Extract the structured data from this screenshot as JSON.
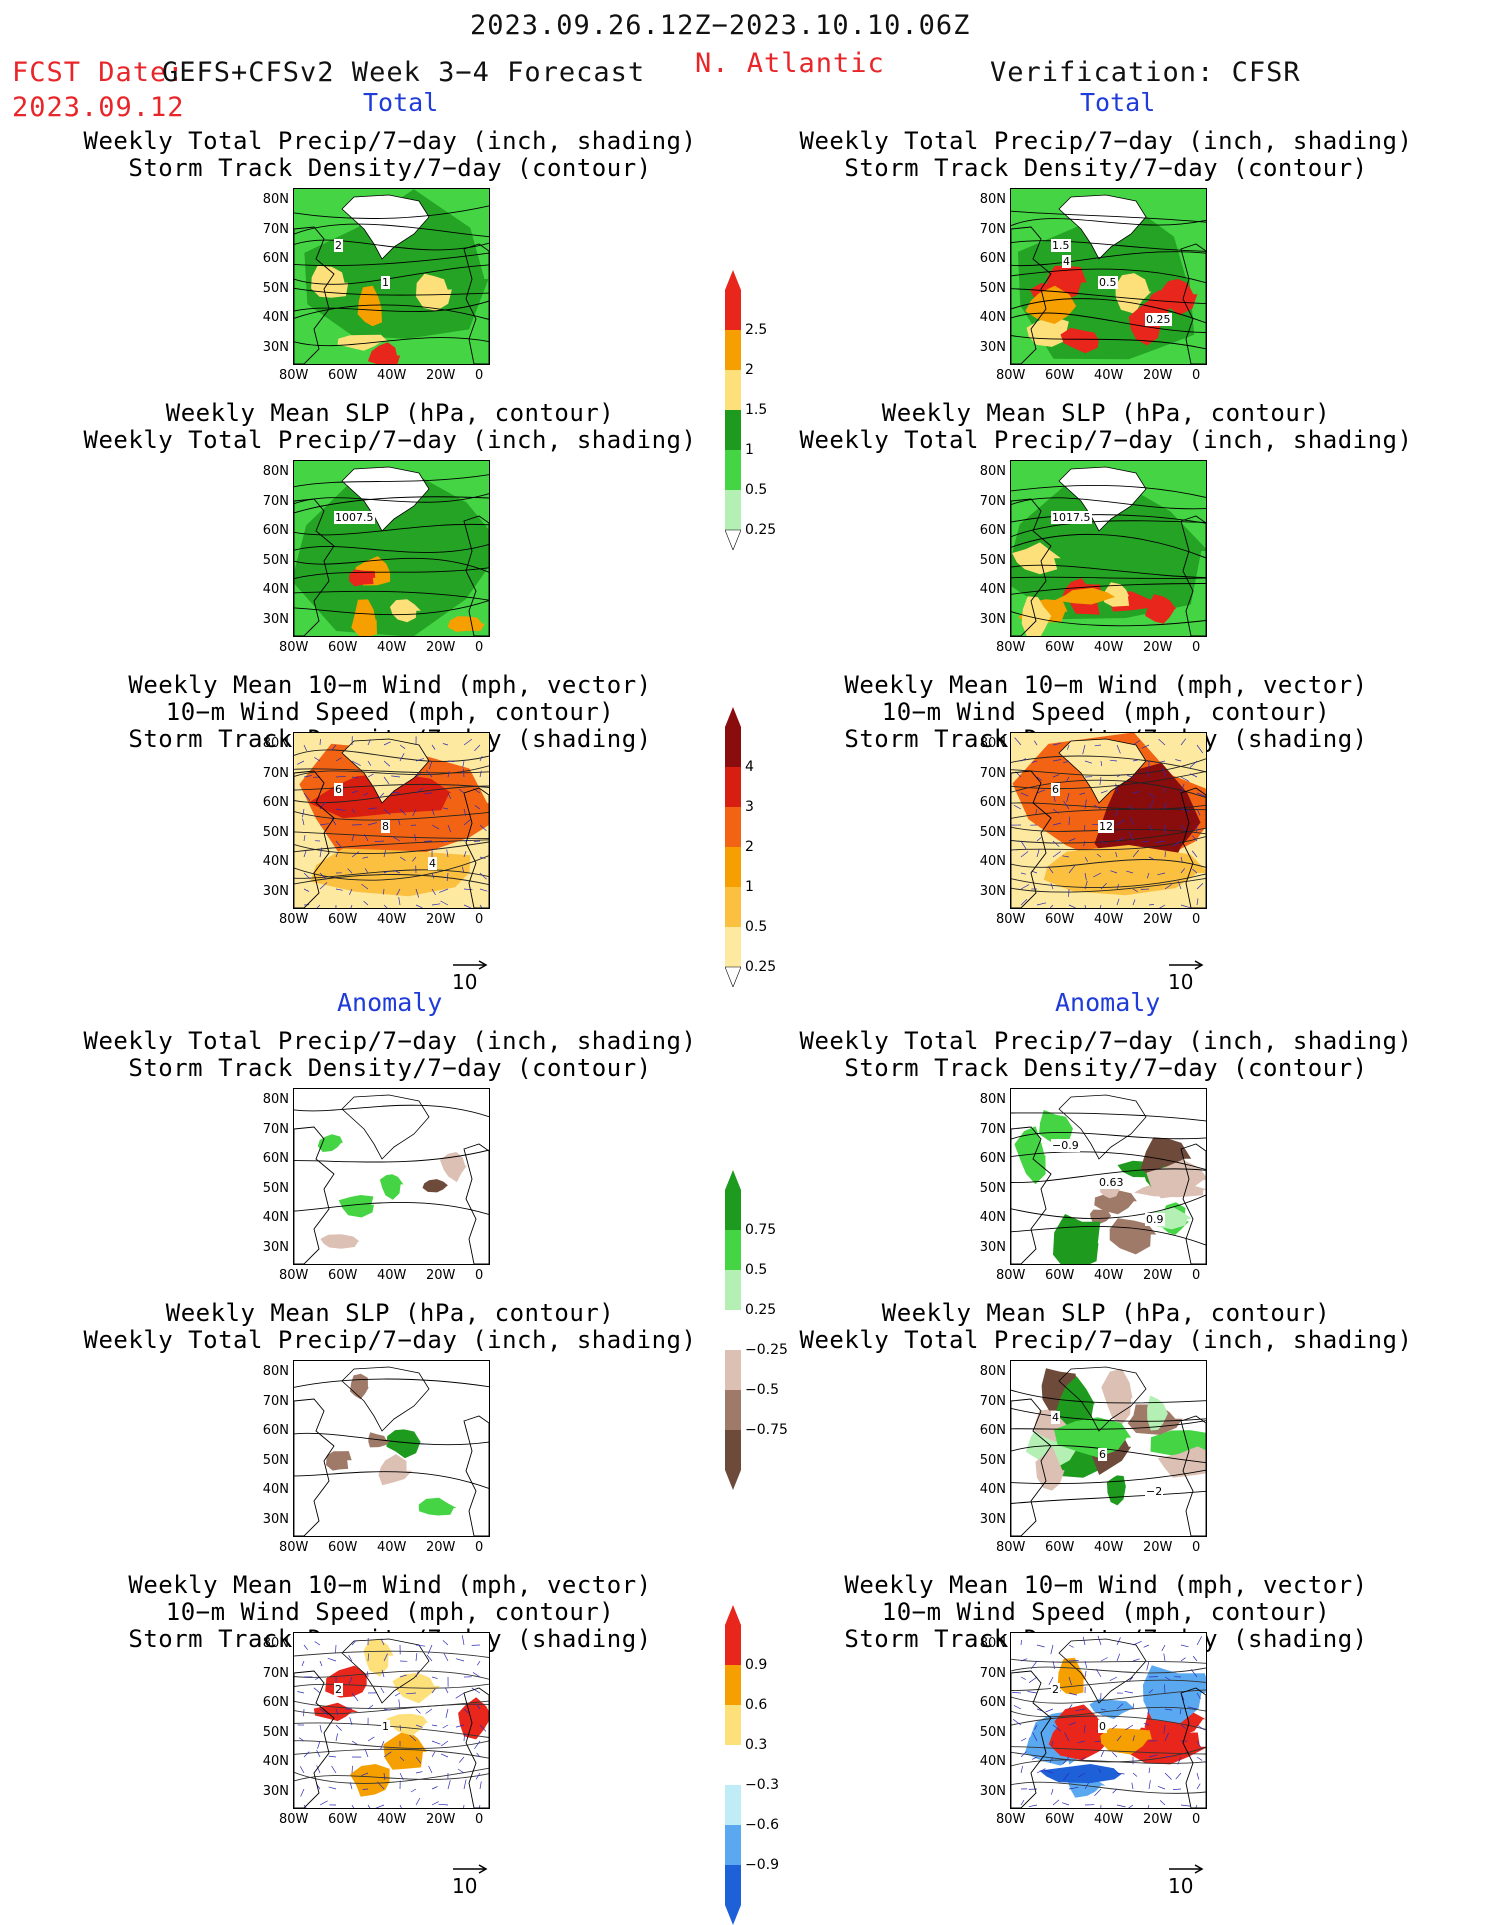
{
  "header": {
    "period": "2023.09.26.12Z−2023.10.10.06Z",
    "fcst_date_label": "FCST Date:",
    "fcst_date": "2023.09.12",
    "model": "GEFS+CFSv2 Week 3−4 Forecast",
    "region": "N. Atlantic",
    "verification": "Verification: CFSR"
  },
  "sections": {
    "total": "Total",
    "anomaly": "Anomaly"
  },
  "titles": {
    "precip_storm": [
      "Weekly Total Precip/7−day (inch, shading)",
      "Storm Track Density/7−day (contour)"
    ],
    "slp_precip": [
      "Weekly Mean SLP (hPa, contour)",
      "Weekly Total Precip/7−day (inch, shading)"
    ],
    "wind_storm": [
      "Weekly Mean 10−m Wind (mph, vector)",
      "10−m Wind Speed (mph, contour)",
      "Storm Track Density/7−day (shading)"
    ]
  },
  "axes": {
    "lat_ticks": [
      "80N",
      "70N",
      "60N",
      "50N",
      "40N",
      "30N"
    ],
    "lon_ticks": [
      "80W",
      "60W",
      "40W",
      "20W",
      "0"
    ]
  },
  "vector_ref": "10",
  "colorbars": {
    "precip_total": {
      "labels": [
        "2.5",
        "2",
        "1.5",
        "1",
        "0.5",
        "0.25"
      ],
      "colors": [
        "#e8261c",
        "#f5a000",
        "#fde07a",
        "#1e9a1e",
        "#44d444",
        "#b4f0b4"
      ]
    },
    "storm_total": {
      "labels": [
        "4",
        "3",
        "2",
        "1",
        "0.5",
        "0.25"
      ],
      "colors": [
        "#8a0d0d",
        "#d81e10",
        "#f26414",
        "#f5a000",
        "#fbc040",
        "#fde9a0"
      ]
    },
    "precip_anom": {
      "labels": [
        "0.75",
        "0.5",
        "0.25",
        "−0.25",
        "−0.5",
        "−0.75"
      ],
      "colors": [
        "#1e9a1e",
        "#44d444",
        "#b4f0b4",
        "#ffffff",
        "#dcc0b4",
        "#a07a68",
        "#6e4a3a"
      ]
    },
    "storm_anom": {
      "labels": [
        "0.9",
        "0.6",
        "0.3",
        "−0.3",
        "−0.6",
        "−0.9"
      ],
      "colors": [
        "#e8261c",
        "#f5a000",
        "#fde07a",
        "#ffffff",
        "#c0ecf8",
        "#5aa8f0",
        "#1e60d8"
      ]
    }
  },
  "contour_labels": {
    "p1_left": [
      "2",
      "1"
    ],
    "p1_right": [
      "1.5",
      "0.5",
      "0.25",
      "4"
    ],
    "p2_left": [
      "1007.5"
    ],
    "p2_right": [
      "1017.5"
    ],
    "p3_left": [
      "6",
      "8",
      "4"
    ],
    "p3_right": [
      "6",
      "12"
    ],
    "p4_right": [
      "−0.9",
      "0.63",
      "0.9"
    ],
    "p5_right": [
      "4",
      "6",
      "−2"
    ],
    "p6_left": [
      "2",
      "1"
    ],
    "p6_right": [
      "2",
      "0"
    ]
  }
}
